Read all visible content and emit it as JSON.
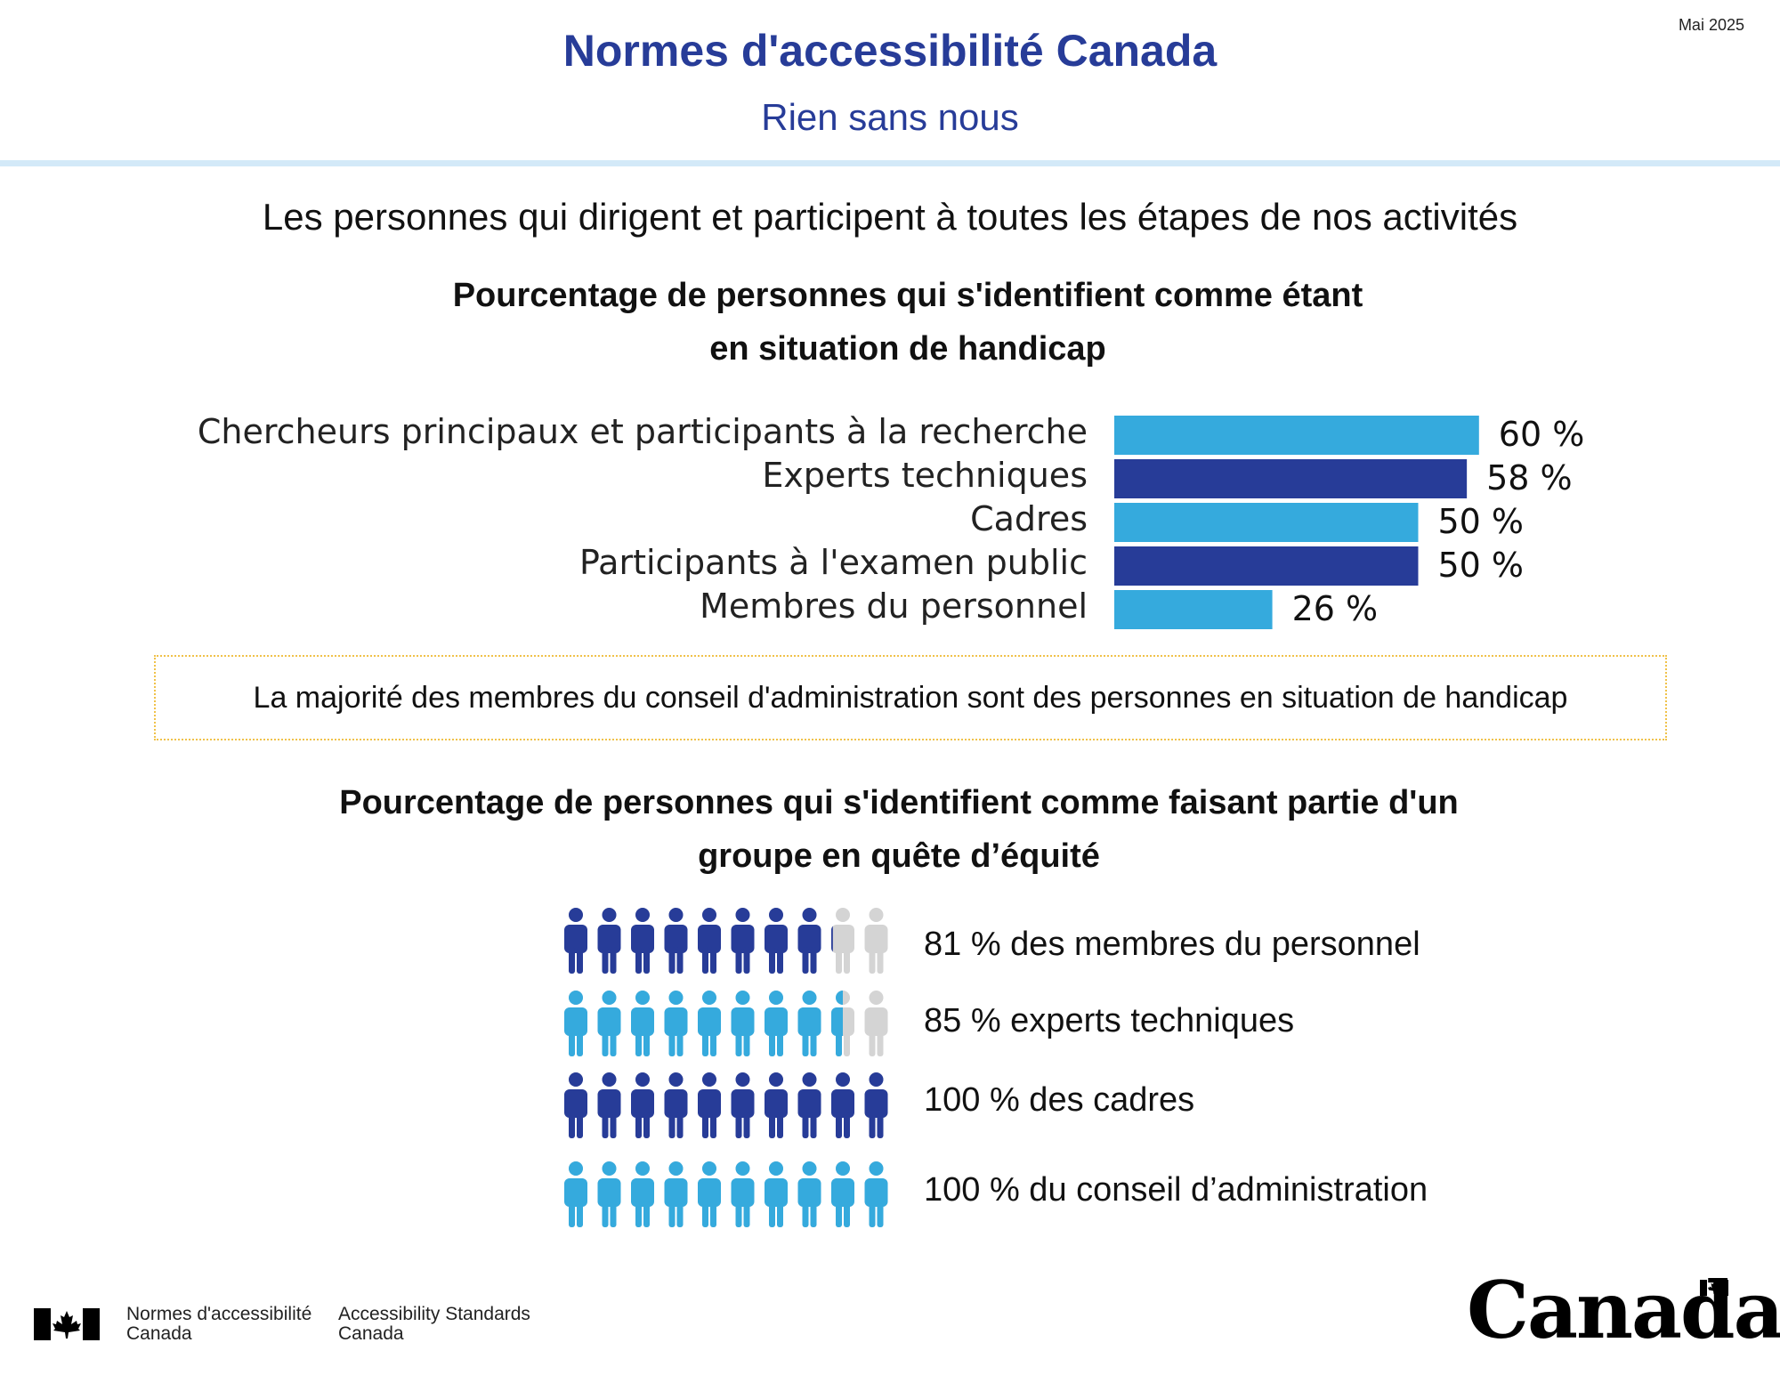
{
  "header": {
    "date": "Mai 2025",
    "title": "Normes d'accessibilité Canada",
    "subtitle": "Rien sans nous"
  },
  "lead": "Les personnes qui dirigent et participent à toutes les étapes de nos activités",
  "colors": {
    "primary": "#273c98",
    "light": "#35aadd",
    "inactive": "#d4d4d4",
    "note_border": "#f0c24a"
  },
  "note": "La majorité des membres du conseil d'administration sont des personnes en situation de handicap",
  "chart_data": [
    {
      "type": "bar",
      "orientation": "horizontal",
      "title": "Pourcentage de personnes qui s'identifient comme étant en situation de handicap",
      "title_lines": [
        "Pourcentage de personnes qui s'identifient comme étant",
        "en situation de handicap"
      ],
      "categories": [
        "Chercheurs principaux et participants à la recherche",
        "Experts techniques",
        "Cadres",
        "Participants à l'examen public",
        "Membres du personnel"
      ],
      "values": [
        60,
        58,
        50,
        50,
        26
      ],
      "value_labels": [
        "60 %",
        "58 %",
        "50 %",
        "50 %",
        "26 %"
      ],
      "bar_colors": [
        "#35aadd",
        "#273c98",
        "#35aadd",
        "#273c98",
        "#35aadd"
      ],
      "xlim": [
        0,
        100
      ],
      "grid": false
    },
    {
      "type": "pictogram",
      "title": "Pourcentage de personnes qui s'identifient comme faisant partie d'un groupe en quête d'équité",
      "title_lines": [
        "Pourcentage de personnes qui s'identifient comme faisant partie d'un",
        "groupe en quête d’équité"
      ],
      "icons_per_row": 10,
      "rows": [
        {
          "value": 81,
          "label": "81 % des membres du personnel",
          "color": "#273c98"
        },
        {
          "value": 85,
          "label": "85 % experts techniques",
          "color": "#35aadd"
        },
        {
          "value": 100,
          "label": "100 % des cadres",
          "color": "#273c98"
        },
        {
          "value": 100,
          "label": "100 % du conseil d’administration",
          "color": "#35aadd"
        }
      ]
    }
  ],
  "footer": {
    "dept_fr_line1": "Normes d'accessibilité",
    "dept_fr_line2": "Canada",
    "dept_en_line1": "Accessibility Standards",
    "dept_en_line2": "Canada",
    "wordmark": "Canada"
  }
}
